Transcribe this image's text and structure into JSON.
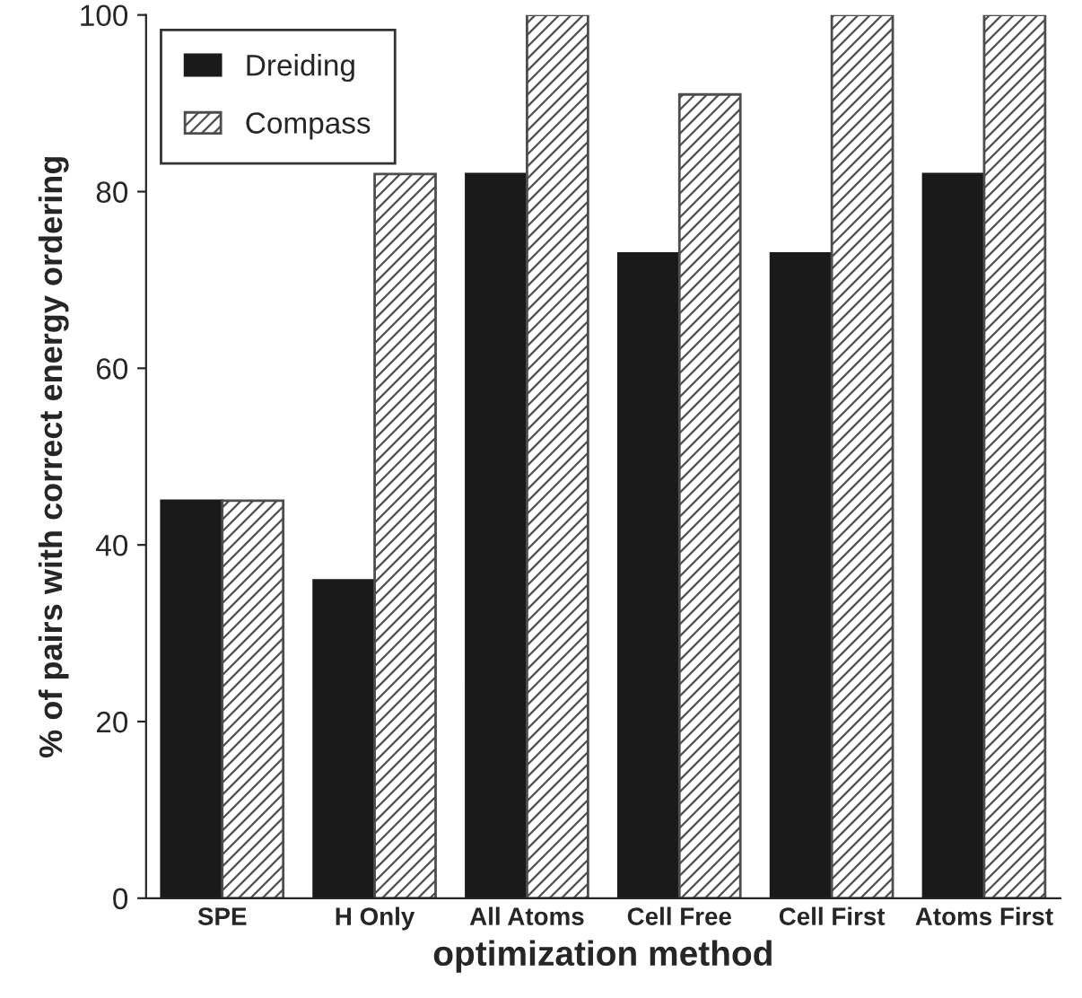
{
  "chart_data": {
    "type": "bar",
    "xlabel": "optimization method",
    "ylabel": "% of pairs with correct energy ordering",
    "categories": [
      "SPE",
      "H Only",
      "All Atoms",
      "Cell Free",
      "Cell First",
      "Atoms First"
    ],
    "series": [
      {
        "name": "Dreiding",
        "color": "#1a1a1a",
        "values": [
          45,
          36,
          82,
          73,
          73,
          82
        ]
      },
      {
        "name": "Compass",
        "color": "#4d4d4d",
        "values": [
          45,
          82,
          100,
          91,
          100,
          100
        ]
      }
    ],
    "ylim": [
      0,
      100
    ],
    "yticks": [
      0,
      20,
      40,
      60,
      80,
      100
    ],
    "grid": false,
    "legend": "top left"
  }
}
